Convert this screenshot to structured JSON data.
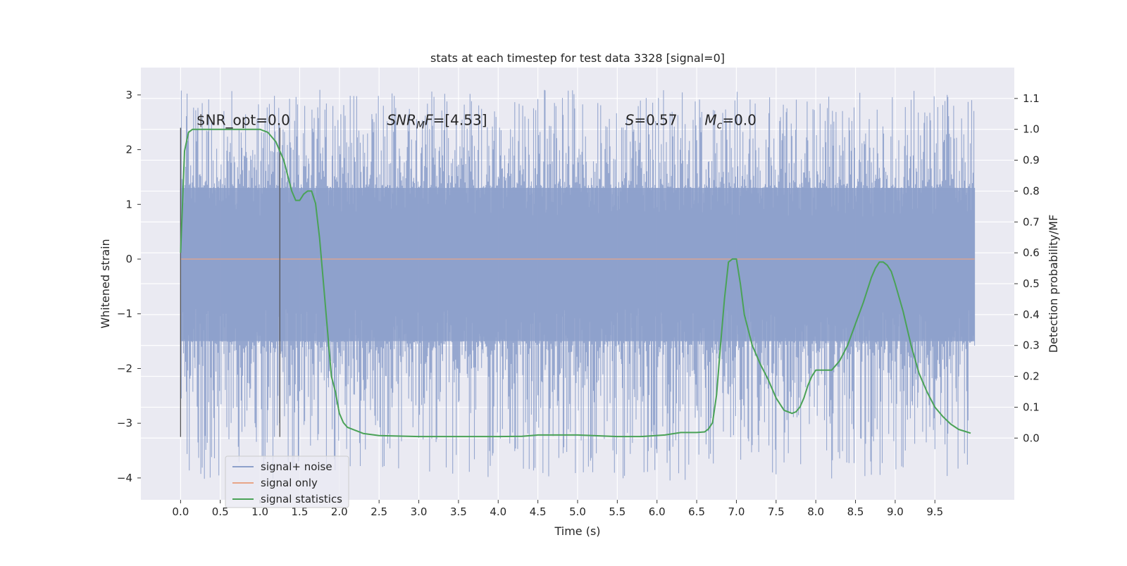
{
  "chart_data": {
    "type": "line",
    "title": "stats at each timestep for test data 3328 [signal=0]",
    "xlabel": "Time (s)",
    "ylabel": "Whitened strain",
    "ylabel_right": "Detection probability/MF",
    "xlim": [
      -0.5,
      10.5
    ],
    "ylim": [
      -4.4,
      3.5
    ],
    "ylim_right": [
      -0.2,
      1.2
    ],
    "x_ticks": [
      0.0,
      0.5,
      1.0,
      1.5,
      2.0,
      2.5,
      3.0,
      3.5,
      4.0,
      4.5,
      5.0,
      5.5,
      6.0,
      6.5,
      7.0,
      7.5,
      8.0,
      8.5,
      9.0,
      9.5
    ],
    "x_tick_labels": [
      "0.0",
      "0.5",
      "1.0",
      "1.5",
      "2.0",
      "2.5",
      "3.0",
      "3.5",
      "4.0",
      "4.5",
      "5.0",
      "5.5",
      "6.0",
      "6.5",
      "7.0",
      "7.5",
      "8.0",
      "8.5",
      "9.0",
      "9.5"
    ],
    "y_ticks": [
      -4,
      -3,
      -2,
      -1,
      0,
      1,
      2,
      3
    ],
    "y_tick_labels": [
      "−4",
      "−3",
      "−2",
      "−1",
      "0",
      "1",
      "2",
      "3"
    ],
    "y2_ticks": [
      0.0,
      0.1,
      0.2,
      0.3,
      0.4,
      0.5,
      0.6,
      0.7,
      0.8,
      0.9,
      1.0,
      1.1
    ],
    "y2_tick_labels": [
      "0.0",
      "0.1",
      "0.2",
      "0.3",
      "0.4",
      "0.5",
      "0.6",
      "0.7",
      "0.8",
      "0.9",
      "1.0",
      "1.1"
    ],
    "grid": true,
    "legend_position": "lower-left",
    "colors": {
      "noise": "#8da0cb",
      "signal": "#e8a587",
      "stats": "#4aa257",
      "markers": "#555555",
      "background": "#eaeaf2",
      "grid": "#ffffff"
    },
    "series": [
      {
        "name": "signal+ noise",
        "type": "noise_band",
        "x_range": [
          0.0,
          10.0
        ],
        "typical_range": [
          -1.5,
          1.3
        ],
        "peak_max": 3.1,
        "peak_min": -4.05
      },
      {
        "name": "signal only",
        "x": [
          0.0,
          10.0
        ],
        "y": [
          0.0,
          0.0
        ]
      },
      {
        "name": "signal statistics",
        "axis": "right",
        "x": [
          0.0,
          0.05,
          0.1,
          0.15,
          0.2,
          0.3,
          0.5,
          0.7,
          0.9,
          1.0,
          1.1,
          1.2,
          1.3,
          1.35,
          1.4,
          1.45,
          1.5,
          1.55,
          1.6,
          1.65,
          1.7,
          1.75,
          1.8,
          1.85,
          1.9,
          1.95,
          2.0,
          2.05,
          2.1,
          2.2,
          2.3,
          2.5,
          3.0,
          3.5,
          4.0,
          4.3,
          4.5,
          5.0,
          5.5,
          5.8,
          6.1,
          6.3,
          6.5,
          6.6,
          6.65,
          6.7,
          6.75,
          6.8,
          6.85,
          6.9,
          6.95,
          7.0,
          7.05,
          7.1,
          7.2,
          7.3,
          7.4,
          7.5,
          7.6,
          7.7,
          7.75,
          7.8,
          7.85,
          7.9,
          7.95,
          8.0,
          8.1,
          8.2,
          8.3,
          8.4,
          8.5,
          8.6,
          8.7,
          8.75,
          8.8,
          8.85,
          8.9,
          8.95,
          9.0,
          9.1,
          9.2,
          9.3,
          9.4,
          9.5,
          9.6,
          9.7,
          9.8,
          9.9,
          9.95
        ],
        "y": [
          0.6,
          0.93,
          0.99,
          1.0,
          1.0,
          1.0,
          1.0,
          1.0,
          1.0,
          1.0,
          0.99,
          0.96,
          0.9,
          0.85,
          0.8,
          0.77,
          0.77,
          0.79,
          0.8,
          0.8,
          0.76,
          0.65,
          0.5,
          0.35,
          0.2,
          0.15,
          0.08,
          0.05,
          0.035,
          0.025,
          0.015,
          0.008,
          0.005,
          0.005,
          0.005,
          0.006,
          0.01,
          0.01,
          0.005,
          0.005,
          0.01,
          0.018,
          0.018,
          0.02,
          0.03,
          0.05,
          0.14,
          0.3,
          0.45,
          0.57,
          0.58,
          0.58,
          0.5,
          0.4,
          0.3,
          0.24,
          0.19,
          0.13,
          0.09,
          0.08,
          0.085,
          0.1,
          0.13,
          0.17,
          0.2,
          0.22,
          0.22,
          0.22,
          0.25,
          0.3,
          0.37,
          0.44,
          0.52,
          0.55,
          0.57,
          0.57,
          0.56,
          0.54,
          0.5,
          0.41,
          0.3,
          0.21,
          0.15,
          0.1,
          0.07,
          0.045,
          0.028,
          0.02,
          0.016
        ]
      }
    ],
    "vertical_markers": [
      {
        "x": 0.0,
        "ymin": -3.25,
        "ymax": 2.4
      },
      {
        "x": 1.25,
        "ymin": -3.25,
        "ymax": 2.4
      }
    ],
    "annotations": [
      {
        "text": "$NR_opt=0.0",
        "x": 0.2,
        "y": 2.45,
        "parts": [
          {
            "t": "$NR_opt=0.0",
            "style": "normal"
          }
        ]
      },
      {
        "text": "SNR_MF=[4.53]",
        "x": 2.6,
        "y": 2.45,
        "parts": [
          {
            "t": "SNR",
            "style": "italic"
          },
          {
            "t": "M",
            "style": "italic-sub"
          },
          {
            "t": "F",
            "style": "italic"
          },
          {
            "t": "=[4.53]",
            "style": "normal"
          }
        ]
      },
      {
        "text": "S=0.57",
        "x": 5.6,
        "y": 2.45,
        "parts": [
          {
            "t": "S",
            "style": "italic"
          },
          {
            "t": "=0.57",
            "style": "normal"
          }
        ]
      },
      {
        "text": "M_c=0.0",
        "x": 6.6,
        "y": 2.45,
        "parts": [
          {
            "t": "M",
            "style": "italic"
          },
          {
            "t": "c",
            "style": "italic-sub"
          },
          {
            "t": "=0.0",
            "style": "normal"
          }
        ]
      }
    ]
  }
}
